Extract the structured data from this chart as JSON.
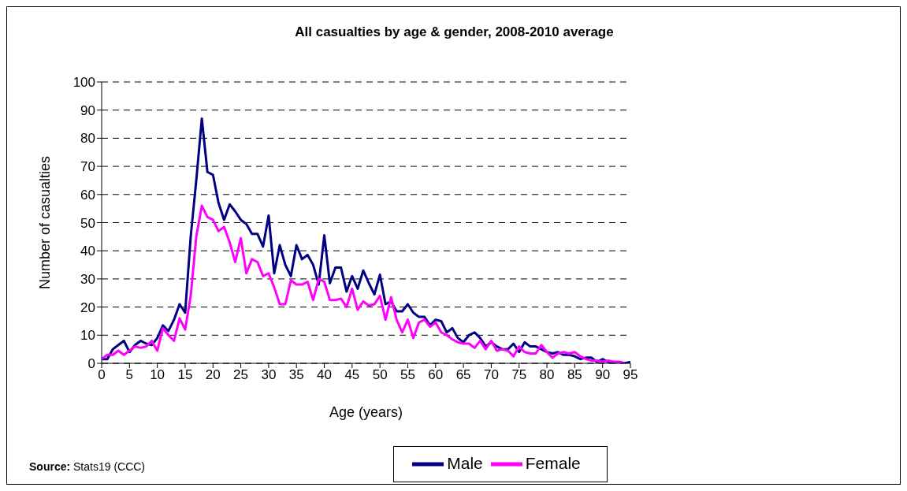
{
  "chart_data": {
    "type": "line",
    "title": "All casualties by age & gender, 2008-2010 average",
    "xlabel": "Age (years)",
    "ylabel": "Number of casualties",
    "annotations": [
      "Source: Stats19 (CCC)"
    ],
    "x": [
      0,
      1,
      2,
      3,
      4,
      5,
      6,
      7,
      8,
      9,
      10,
      11,
      12,
      13,
      14,
      15,
      16,
      17,
      18,
      19,
      20,
      21,
      22,
      23,
      24,
      25,
      26,
      27,
      28,
      29,
      30,
      31,
      32,
      33,
      34,
      35,
      36,
      37,
      38,
      39,
      40,
      41,
      42,
      43,
      44,
      45,
      46,
      47,
      48,
      49,
      50,
      51,
      52,
      53,
      54,
      55,
      56,
      57,
      58,
      59,
      60,
      61,
      62,
      63,
      64,
      65,
      66,
      67,
      68,
      69,
      70,
      71,
      72,
      73,
      74,
      75,
      76,
      77,
      78,
      79,
      80,
      81,
      82,
      83,
      84,
      85,
      86,
      87,
      88,
      89,
      90,
      91,
      92,
      93,
      94,
      95
    ],
    "series": [
      {
        "name": "Male",
        "color": "#000080",
        "values": [
          1.5,
          1.5,
          5,
          6.5,
          8,
          4,
          6.5,
          8,
          7,
          6.5,
          9,
          13.5,
          11.5,
          15.5,
          21,
          18,
          45,
          65,
          87,
          68,
          67,
          57,
          51,
          56.5,
          54,
          51,
          49.5,
          46,
          46,
          41.5,
          52.5,
          32,
          42,
          35,
          31,
          42,
          37,
          38.5,
          35,
          28,
          45.5,
          28.5,
          34,
          34,
          25.5,
          31,
          26.5,
          33,
          28.5,
          24.5,
          31.5,
          21,
          22,
          18.5,
          18.5,
          21,
          18,
          16.5,
          16.5,
          13.5,
          15.5,
          15,
          11,
          12.5,
          9,
          7.5,
          10,
          11,
          9,
          6,
          7.5,
          6,
          5,
          5,
          7,
          4,
          7.5,
          6,
          6,
          5,
          4,
          3.5,
          4,
          3,
          3,
          2.5,
          1.5,
          2,
          2,
          0.5,
          1.5,
          0.5,
          0.5,
          0.5,
          0,
          0.5
        ]
      },
      {
        "name": "Female",
        "color": "#ff00ff",
        "values": [
          1.5,
          3,
          3,
          4.5,
          3,
          4.5,
          6,
          5.5,
          6,
          8,
          4.5,
          12.5,
          10,
          8,
          16,
          12,
          24,
          45,
          56,
          52,
          51,
          47,
          48.5,
          43,
          36,
          44.5,
          32,
          37,
          36,
          31,
          32,
          27,
          21,
          21,
          29.5,
          28,
          28,
          29,
          22.5,
          30,
          29,
          22.5,
          22.5,
          23,
          20,
          26.5,
          19,
          22,
          20.5,
          21,
          24,
          15.5,
          23.5,
          15.5,
          11,
          15.5,
          9,
          14.5,
          15.5,
          13,
          14.5,
          11,
          10,
          8.5,
          7.5,
          7,
          7,
          5.5,
          8,
          5,
          8,
          4.5,
          5,
          4.5,
          2.5,
          6,
          4,
          3.5,
          3.5,
          6.5,
          4,
          2,
          3.5,
          4,
          3.5,
          4,
          2.5,
          1.5,
          1,
          1,
          0.5,
          1,
          0.5,
          0.5,
          0,
          null
        ]
      }
    ],
    "xlim": [
      0,
      95
    ],
    "xticks": [
      0,
      5,
      10,
      15,
      20,
      25,
      30,
      35,
      40,
      45,
      50,
      55,
      60,
      65,
      70,
      75,
      80,
      85,
      90,
      95
    ],
    "ylim": [
      0,
      100
    ],
    "yticks": [
      0,
      10,
      20,
      30,
      40,
      50,
      60,
      70,
      80,
      90,
      100
    ],
    "grid": "y",
    "legend": "bottom",
    "marker": "none",
    "line_style": "solid"
  }
}
